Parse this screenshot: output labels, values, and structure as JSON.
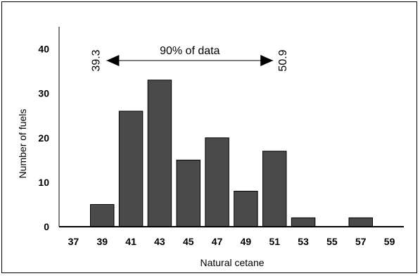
{
  "chart_data": {
    "type": "bar",
    "categories": [
      "37",
      "39",
      "41",
      "43",
      "45",
      "47",
      "49",
      "51",
      "53",
      "55",
      "57",
      "59"
    ],
    "values": [
      0,
      5,
      26,
      33,
      15,
      20,
      8,
      17,
      2,
      0,
      2,
      0
    ],
    "xlabel": "Natural cetane",
    "ylabel": "Number of fuels",
    "ylim": [
      0,
      45
    ],
    "yticks": [
      "0",
      "10",
      "20",
      "30",
      "40"
    ],
    "grid": false,
    "bar_color": "#4a4a4a",
    "annotation": {
      "text": "90% of data",
      "left_label": "39.3",
      "right_label": "50.9",
      "from_x": 39.3,
      "to_x": 50.9
    }
  }
}
